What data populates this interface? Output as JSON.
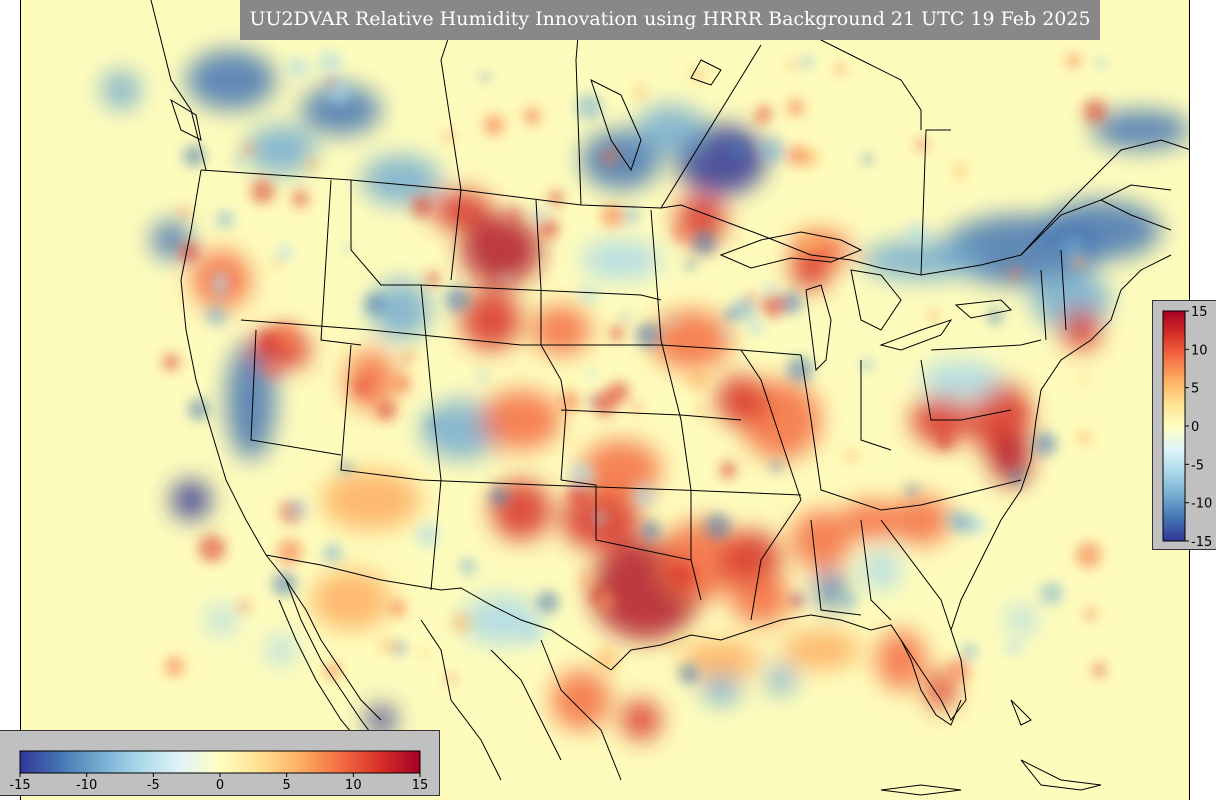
{
  "title": "UU2DVAR Relative Humidity Innovation using HRRR Background 21 UTC 19 Feb 2025",
  "colorbar": {
    "min": -15,
    "max": 15,
    "vertical_ticks": [
      "15",
      "10",
      "5",
      "0",
      "-5",
      "-10",
      "-15"
    ],
    "horizontal_ticks": [
      "-15",
      "-10",
      "-5",
      "0",
      "5",
      "10",
      "15"
    ],
    "colors": [
      "#313695",
      "#4575b4",
      "#74add1",
      "#abd9e9",
      "#e0f3f8",
      "#ffffbf",
      "#fee090",
      "#fdae61",
      "#f46d43",
      "#d73027",
      "#a50026"
    ]
  },
  "map": {
    "background_color": "#fefcbc",
    "ocean_color": "#fdfbc4",
    "line_color": "#000000"
  }
}
